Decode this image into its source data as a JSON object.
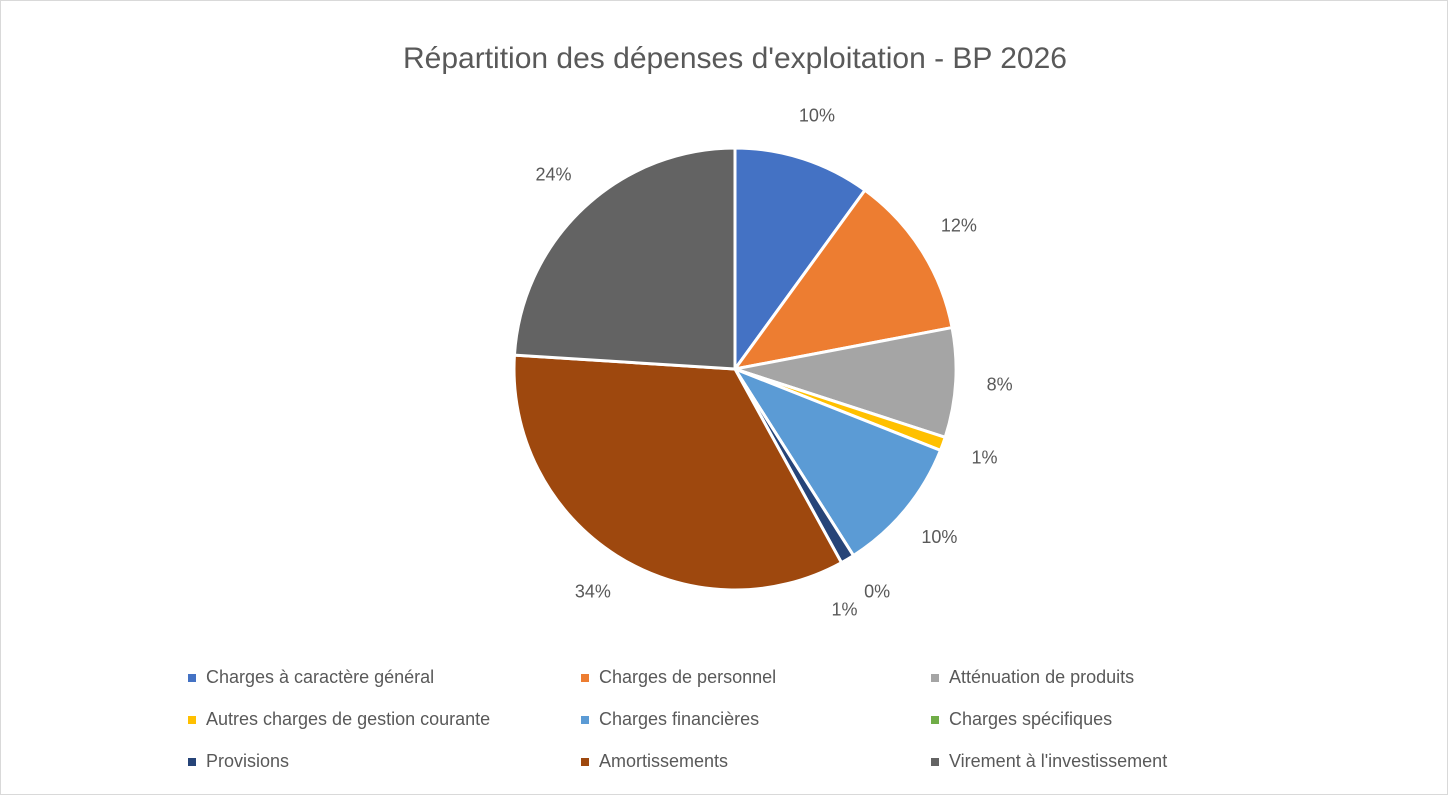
{
  "chart_data": {
    "type": "pie",
    "title": "Répartition des dépenses d'exploitation - BP 2026",
    "categories": [
      "Charges à caractère général",
      "Charges de personnel",
      "Atténuation de produits",
      "Autres charges de gestion courante",
      "Charges financières",
      "Charges spécifiques",
      "Provisions",
      "Amortissements",
      "Virement à l'investissement"
    ],
    "values": [
      10,
      12,
      8,
      1,
      10,
      0,
      1,
      34,
      24
    ],
    "value_labels": [
      "10%",
      "12%",
      "8%",
      "1%",
      "10%",
      "0%",
      "1%",
      "34%",
      "24%"
    ],
    "colors": [
      "#4472c4",
      "#ed7d31",
      "#a5a5a5",
      "#ffc000",
      "#5b9bd5",
      "#70ad47",
      "#264478",
      "#9e480e",
      "#636363"
    ],
    "legend": "bottom"
  }
}
